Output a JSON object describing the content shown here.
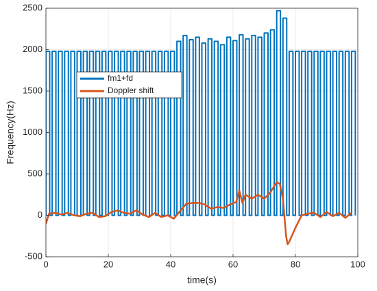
{
  "chart_data": {
    "type": "line",
    "xlabel": "time(s)",
    "ylabel": "Frequency(Hz)",
    "xlim": [
      0,
      100
    ],
    "xticks": [
      0,
      20,
      40,
      60,
      80,
      100
    ],
    "ylim": [
      -500,
      2500
    ],
    "yticks": [
      -500,
      0,
      500,
      1000,
      1500,
      2000,
      2500
    ],
    "grid": true,
    "legend": "upper left",
    "series": [
      {
        "name": "fm1+fd",
        "color": "#0072BD",
        "x": [
          0,
          0,
          1.2,
          1.2,
          2,
          2,
          3.2,
          3.2,
          4,
          4,
          5.2,
          5.2,
          6,
          6,
          7.2,
          7.2,
          8,
          8,
          9.2,
          9.2,
          10,
          10,
          11.2,
          11.2,
          12,
          12,
          13.2,
          13.2,
          14,
          14,
          15.2,
          15.2,
          16,
          16,
          17.2,
          17.2,
          18,
          18,
          19.2,
          19.2,
          20,
          20,
          21.2,
          21.2,
          22,
          22,
          23.2,
          23.2,
          24,
          24,
          25.2,
          25.2,
          26,
          26,
          27.2,
          27.2,
          28,
          28,
          29.2,
          29.2,
          30,
          30,
          31.2,
          31.2,
          32,
          32,
          33.2,
          33.2,
          34,
          34,
          35.2,
          35.2,
          36,
          36,
          37.2,
          37.2,
          38,
          38,
          39.2,
          39.2,
          40,
          40,
          41.2,
          41.2,
          42,
          42,
          43.2,
          43.2,
          44,
          44,
          45.2,
          45.2,
          46,
          46,
          47.2,
          47.2,
          48,
          48,
          49.2,
          49.2,
          50,
          50,
          51.2,
          51.2,
          52,
          52,
          53.2,
          53.2,
          54,
          54,
          55.2,
          55.2,
          56,
          56,
          57.2,
          57.2,
          58,
          58,
          59.2,
          59.2,
          60,
          60,
          61.2,
          61.2,
          62,
          62,
          63.2,
          63.2,
          64,
          64,
          65.2,
          65.2,
          66,
          66,
          67.2,
          67.2,
          68,
          68,
          69.2,
          69.2,
          70,
          70,
          71.2,
          71.2,
          72,
          72,
          73.2,
          73.2,
          74,
          74,
          75.2,
          75.2,
          76,
          76,
          77.2,
          77.2,
          78,
          78,
          79.2,
          79.2,
          80,
          80,
          81.2,
          81.2,
          82,
          82,
          83.2,
          83.2,
          84,
          84,
          85.2,
          85.2,
          86,
          86,
          87.2,
          87.2,
          88,
          88,
          89.2,
          89.2,
          90,
          90,
          91.2,
          91.2,
          92,
          92,
          93.2,
          93.2,
          94,
          94,
          95.2,
          95.2,
          96,
          96,
          97.2,
          97.2,
          98,
          98,
          99.2,
          99.2
        ],
        "values": [
          0,
          1980,
          1980,
          0,
          0,
          1980,
          1980,
          0,
          0,
          1980,
          1980,
          0,
          0,
          1980,
          1980,
          0,
          0,
          1980,
          1980,
          0,
          0,
          1980,
          1980,
          0,
          0,
          1980,
          1980,
          0,
          0,
          1980,
          1980,
          0,
          0,
          1980,
          1980,
          0,
          0,
          1980,
          1980,
          0,
          0,
          1980,
          1980,
          0,
          0,
          1980,
          1980,
          0,
          0,
          1980,
          1980,
          0,
          0,
          1980,
          1980,
          0,
          0,
          1980,
          1980,
          0,
          0,
          1980,
          1980,
          0,
          0,
          1980,
          1980,
          0,
          0,
          1980,
          1980,
          0,
          0,
          1980,
          1980,
          0,
          0,
          1980,
          1980,
          0,
          0,
          1980,
          1980,
          0,
          0,
          2100,
          2100,
          0,
          0,
          2170,
          2170,
          0,
          0,
          2120,
          2120,
          0,
          0,
          2150,
          2150,
          0,
          0,
          2080,
          2080,
          0,
          0,
          2130,
          2130,
          0,
          0,
          2100,
          2100,
          0,
          0,
          2060,
          2060,
          0,
          0,
          2150,
          2150,
          0,
          0,
          2110,
          2110,
          0,
          0,
          2180,
          2180,
          0,
          0,
          2130,
          2130,
          0,
          0,
          2170,
          2170,
          0,
          0,
          2150,
          2150,
          0,
          0,
          2200,
          2200,
          0,
          0,
          2240,
          2240,
          0,
          0,
          2470,
          2470,
          0,
          0,
          2380,
          2380,
          0,
          0,
          1980,
          1980,
          0,
          0,
          1980,
          1980,
          0,
          0,
          1980,
          1980,
          0,
          0,
          1980,
          1980,
          0,
          0,
          1980,
          1980,
          0,
          0,
          1980,
          1980,
          0,
          0,
          1980,
          1980,
          0,
          0,
          1980,
          1980,
          0,
          0,
          1980,
          1980,
          0,
          0,
          1980,
          1980,
          0,
          0,
          1980,
          1980,
          0
        ]
      },
      {
        "name": "Doppler shift",
        "color": "#D95319",
        "x": [
          0,
          1,
          3,
          5,
          7,
          9,
          11,
          13,
          15,
          17,
          19,
          21,
          23,
          25,
          27,
          29,
          31,
          33,
          35,
          37,
          39,
          41,
          43,
          45,
          47,
          49,
          51,
          53,
          55,
          57,
          59,
          61,
          62,
          63,
          64,
          66,
          68,
          70,
          72,
          74,
          75,
          76,
          77,
          77.5,
          78,
          80,
          82,
          84,
          86,
          88,
          90,
          92,
          94,
          96,
          98
        ],
        "values": [
          -100,
          20,
          30,
          10,
          30,
          0,
          -10,
          20,
          30,
          -20,
          -10,
          40,
          60,
          30,
          20,
          60,
          10,
          -20,
          30,
          -20,
          0,
          -40,
          50,
          140,
          150,
          150,
          130,
          80,
          100,
          90,
          130,
          160,
          300,
          150,
          250,
          200,
          250,
          200,
          280,
          400,
          380,
          200,
          -250,
          -350,
          -320,
          -150,
          0,
          20,
          30,
          -20,
          40,
          -10,
          30,
          -30,
          30
        ]
      }
    ]
  }
}
